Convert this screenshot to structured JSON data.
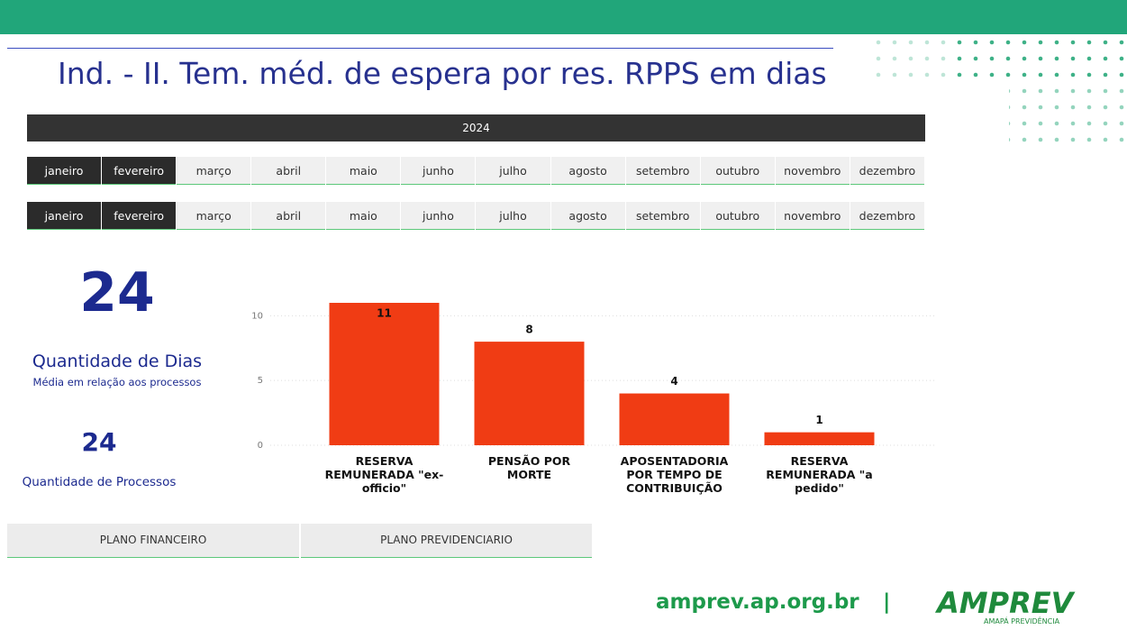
{
  "header": {
    "title": "Ind. - II. Tem. méd. de espera por res. RPPS em dias"
  },
  "year_slicer": {
    "label": "2024"
  },
  "month_slicers": [
    {
      "months": [
        "janeiro",
        "fevereiro",
        "março",
        "abril",
        "maio",
        "junho",
        "julho",
        "agosto",
        "setembro",
        "outubro",
        "novembro",
        "dezembro"
      ],
      "selected": [
        0,
        1
      ]
    },
    {
      "months": [
        "janeiro",
        "fevereiro",
        "março",
        "abril",
        "maio",
        "junho",
        "julho",
        "agosto",
        "setembro",
        "outubro",
        "novembro",
        "dezembro"
      ],
      "selected": [
        0,
        1
      ]
    }
  ],
  "kpis": {
    "days": {
      "value": "24",
      "label": "Quantidade de Dias",
      "sublabel": "Média em relação aos processos"
    },
    "processes": {
      "value": "24",
      "label": "Quantidade de Processos"
    }
  },
  "chart_data": {
    "type": "bar",
    "categories": [
      "RESERVA REMUNERADA \"ex-officio\"",
      "PENSÃO POR MORTE",
      "APOSENTADORIA POR TEMPO DE CONTRIBUIÇÃO",
      "RESERVA REMUNERADA \"a pedido\""
    ],
    "values": [
      11,
      8,
      4,
      1
    ],
    "color": "#f03c14",
    "ylim": [
      0,
      11
    ],
    "yticks": [
      0,
      5,
      10
    ],
    "grid": true
  },
  "buttons": [
    "PLANO FINANCEIRO",
    "PLANO PREVIDENCIARIO"
  ],
  "footer": {
    "url": "amprev.ap.org.br",
    "separator": "|",
    "logo": "AMPREV",
    "logo_sub": "AMAPÁ PREVIDÊNCIA"
  }
}
